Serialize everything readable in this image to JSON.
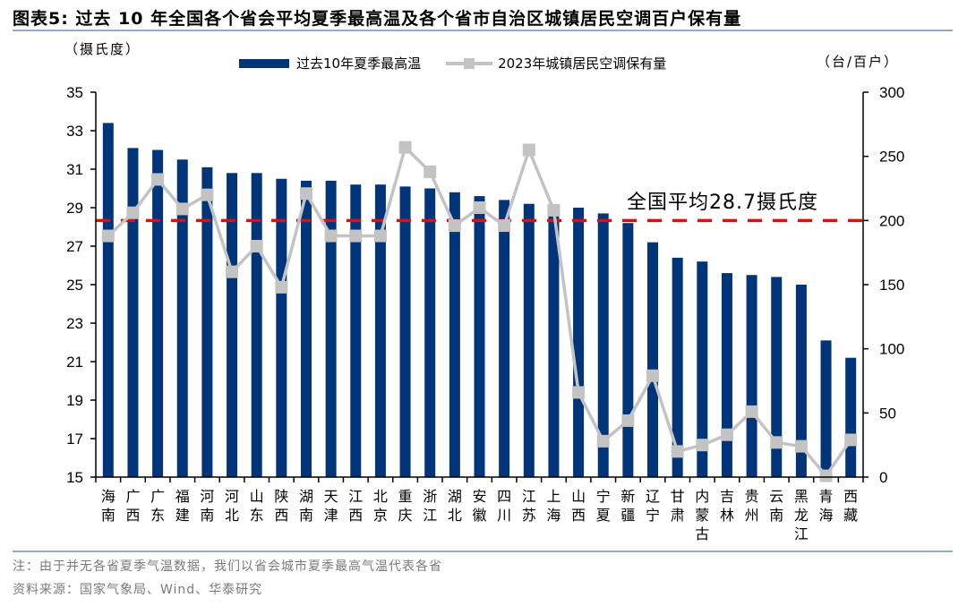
{
  "header": {
    "title": "图表5:  过去 10 年全国各个省会平均夏季最高温及各个省市自治区城镇居民空调百户保有量",
    "unit_left": "（摄氏度）",
    "unit_right": "（台/百户）"
  },
  "legend": {
    "bar_label": "过去10年夏季最高温",
    "line_label": "2023年城镇居民空调保有量"
  },
  "annotation": {
    "avg_label": "全国平均28.7摄氏度"
  },
  "footer": {
    "note": "注：由于并无各省夏季气温数据，我们以省会城市夏季最高气温代表各省",
    "source": "资料来源：国家气象局、Wind、华泰研究"
  },
  "colors": {
    "bar": "#003579",
    "line": "#c3c3c3",
    "avg_line": "#ff0000",
    "rule": "#8fa9c8"
  },
  "chart_data": {
    "type": "bar+line",
    "title": "过去10年全国各个省会平均夏季最高温及各个省市自治区城镇居民空调百户保有量",
    "categories": [
      "海南",
      "广西",
      "广东",
      "福建",
      "河南",
      "河北",
      "山东",
      "陕西",
      "湖南",
      "天津",
      "江西",
      "北京",
      "重庆",
      "浙江",
      "湖北",
      "安徽",
      "四川",
      "江苏",
      "上海",
      "山西",
      "宁夏",
      "新疆",
      "辽宁",
      "甘肃",
      "内蒙古",
      "吉林",
      "贵州",
      "云南",
      "黑龙江",
      "青海",
      "西藏"
    ],
    "series": [
      {
        "name": "过去10年夏季最高温",
        "type": "bar",
        "axis": "left",
        "values": [
          33.4,
          32.1,
          32.0,
          31.5,
          31.1,
          30.8,
          30.8,
          30.5,
          30.4,
          30.4,
          30.2,
          30.2,
          30.1,
          30.0,
          29.8,
          29.6,
          29.4,
          29.2,
          29.1,
          29.0,
          28.7,
          28.2,
          27.2,
          26.4,
          26.2,
          25.6,
          25.5,
          25.4,
          25.0,
          22.1,
          21.2
        ]
      },
      {
        "name": "2023年城镇居民空调保有量",
        "type": "line",
        "axis": "right",
        "values": [
          188,
          206,
          232,
          209,
          220,
          160,
          180,
          148,
          221,
          188,
          188,
          188,
          257,
          238,
          196,
          210,
          196,
          255,
          208,
          66,
          28,
          44,
          79,
          20,
          25,
          33,
          51,
          27,
          24,
          1,
          29
        ]
      }
    ],
    "reference_line": {
      "label": "全国平均28.7摄氏度",
      "right_axis_value": 200
    },
    "ylabel": "摄氏度",
    "y2label": "台/百户",
    "ylim": [
      15,
      35
    ],
    "yticks": [
      15,
      17,
      19,
      21,
      23,
      25,
      27,
      29,
      31,
      33,
      35
    ],
    "y2lim": [
      0,
      300
    ],
    "y2ticks": [
      0,
      50,
      100,
      150,
      200,
      250,
      300
    ],
    "grid": false,
    "legend_position": "top"
  }
}
